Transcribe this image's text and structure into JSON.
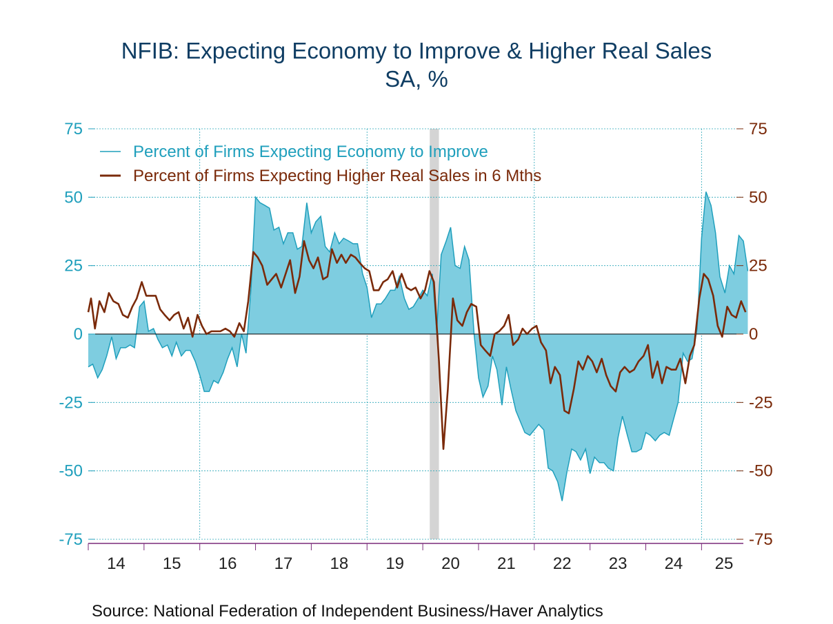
{
  "colors": {
    "econ_line": "#1f9fbc",
    "econ_fill": "#7ecde0",
    "sales_line": "#7a2a0a",
    "left_axis_text": "#1f9fbc",
    "right_axis_text": "#7a2a0a",
    "grid": "#2aa6b8",
    "recession": "#d4d4d4",
    "axis_line": "#7a2a7a",
    "title": "#0f3d63"
  },
  "chart_data": {
    "type": "line",
    "title": "NFIB: Expecting Economy to Improve & Higher Real Sales",
    "subtitle": "SA, %",
    "source": "Source:  National Federation of Independent Business/Haver Analytics",
    "x_labels": [
      "14",
      "15",
      "16",
      "17",
      "18",
      "19",
      "20",
      "21",
      "22",
      "23",
      "24",
      "25"
    ],
    "x_range": [
      2014.0,
      2025.75
    ],
    "y_left": {
      "range": [
        -75,
        75
      ],
      "ticks": [
        "75",
        "50",
        "25",
        "0",
        "-25",
        "-50",
        "-75"
      ]
    },
    "y_right": {
      "range": [
        -75,
        75
      ],
      "ticks": [
        "75",
        "50",
        "25",
        "0",
        "-25",
        "-50",
        "-75"
      ]
    },
    "grid": true,
    "legend_position": "top-left",
    "recession": [
      2020.125,
      2020.29
    ],
    "series": [
      {
        "name": "Percent of Firms Expecting Economy to Improve",
        "axis": "left",
        "style": "area",
        "points": [
          [
            2014.0,
            -12
          ],
          [
            2014.08,
            -11
          ],
          [
            2014.17,
            -16
          ],
          [
            2014.25,
            -13
          ],
          [
            2014.33,
            -8
          ],
          [
            2014.42,
            -1
          ],
          [
            2014.5,
            -9
          ],
          [
            2014.58,
            -5
          ],
          [
            2014.67,
            -5
          ],
          [
            2014.75,
            -4
          ],
          [
            2014.83,
            -5
          ],
          [
            2014.92,
            10
          ],
          [
            2015.0,
            12
          ],
          [
            2015.08,
            1
          ],
          [
            2015.17,
            2
          ],
          [
            2015.25,
            -2
          ],
          [
            2015.33,
            -5
          ],
          [
            2015.42,
            -4
          ],
          [
            2015.5,
            -8
          ],
          [
            2015.58,
            -3
          ],
          [
            2015.67,
            -8
          ],
          [
            2015.75,
            -6
          ],
          [
            2015.83,
            -6
          ],
          [
            2015.92,
            -10
          ],
          [
            2016.0,
            -15
          ],
          [
            2016.08,
            -21
          ],
          [
            2016.17,
            -21
          ],
          [
            2016.25,
            -17
          ],
          [
            2016.33,
            -18
          ],
          [
            2016.42,
            -14
          ],
          [
            2016.5,
            -9
          ],
          [
            2016.58,
            -5
          ],
          [
            2016.67,
            -12
          ],
          [
            2016.75,
            0
          ],
          [
            2016.83,
            -7
          ],
          [
            2016.92,
            17
          ],
          [
            2017.0,
            50
          ],
          [
            2017.08,
            48
          ],
          [
            2017.17,
            47
          ],
          [
            2017.25,
            46
          ],
          [
            2017.33,
            38
          ],
          [
            2017.42,
            39
          ],
          [
            2017.5,
            33
          ],
          [
            2017.58,
            37
          ],
          [
            2017.67,
            37
          ],
          [
            2017.75,
            31
          ],
          [
            2017.83,
            32
          ],
          [
            2017.92,
            48
          ],
          [
            2018.0,
            37
          ],
          [
            2018.08,
            41
          ],
          [
            2018.17,
            43
          ],
          [
            2018.25,
            32
          ],
          [
            2018.33,
            30
          ],
          [
            2018.42,
            37
          ],
          [
            2018.5,
            33
          ],
          [
            2018.58,
            35
          ],
          [
            2018.67,
            34
          ],
          [
            2018.75,
            33
          ],
          [
            2018.83,
            33
          ],
          [
            2018.92,
            22
          ],
          [
            2019.0,
            17
          ],
          [
            2019.08,
            6
          ],
          [
            2019.17,
            11
          ],
          [
            2019.25,
            11
          ],
          [
            2019.33,
            13
          ],
          [
            2019.42,
            16
          ],
          [
            2019.5,
            16
          ],
          [
            2019.58,
            21
          ],
          [
            2019.67,
            13
          ],
          [
            2019.75,
            9
          ],
          [
            2019.83,
            10
          ],
          [
            2019.92,
            13
          ],
          [
            2020.0,
            16
          ],
          [
            2020.08,
            14
          ],
          [
            2020.17,
            22
          ],
          [
            2020.25,
            1
          ],
          [
            2020.33,
            29
          ],
          [
            2020.42,
            34
          ],
          [
            2020.5,
            39
          ],
          [
            2020.58,
            25
          ],
          [
            2020.67,
            24
          ],
          [
            2020.75,
            32
          ],
          [
            2020.83,
            27
          ],
          [
            2020.92,
            0
          ],
          [
            2021.0,
            -16
          ],
          [
            2021.08,
            -23
          ],
          [
            2021.17,
            -19
          ],
          [
            2021.25,
            -8
          ],
          [
            2021.33,
            -13
          ],
          [
            2021.42,
            -26
          ],
          [
            2021.5,
            -12
          ],
          [
            2021.58,
            -20
          ],
          [
            2021.67,
            -28
          ],
          [
            2021.75,
            -32
          ],
          [
            2021.83,
            -36
          ],
          [
            2021.92,
            -37
          ],
          [
            2022.0,
            -35
          ],
          [
            2022.08,
            -33
          ],
          [
            2022.17,
            -35
          ],
          [
            2022.25,
            -49
          ],
          [
            2022.33,
            -50
          ],
          [
            2022.42,
            -54
          ],
          [
            2022.5,
            -61
          ],
          [
            2022.58,
            -51
          ],
          [
            2022.67,
            -42
          ],
          [
            2022.75,
            -43
          ],
          [
            2022.83,
            -46
          ],
          [
            2022.92,
            -42
          ],
          [
            2023.0,
            -51
          ],
          [
            2023.08,
            -45
          ],
          [
            2023.17,
            -47
          ],
          [
            2023.25,
            -47
          ],
          [
            2023.33,
            -49
          ],
          [
            2023.42,
            -50
          ],
          [
            2023.5,
            -38
          ],
          [
            2023.58,
            -30
          ],
          [
            2023.67,
            -37
          ],
          [
            2023.75,
            -43
          ],
          [
            2023.83,
            -43
          ],
          [
            2023.92,
            -42
          ],
          [
            2024.0,
            -36
          ],
          [
            2024.08,
            -37
          ],
          [
            2024.17,
            -39
          ],
          [
            2024.25,
            -37
          ],
          [
            2024.33,
            -36
          ],
          [
            2024.42,
            -37
          ],
          [
            2024.5,
            -31
          ],
          [
            2024.58,
            -25
          ],
          [
            2024.67,
            -7
          ],
          [
            2024.75,
            -10
          ],
          [
            2024.83,
            -9
          ],
          [
            2024.92,
            2
          ],
          [
            2025.0,
            35
          ],
          [
            2025.08,
            52
          ],
          [
            2025.17,
            47
          ],
          [
            2025.25,
            37
          ],
          [
            2025.33,
            21
          ],
          [
            2025.42,
            15
          ],
          [
            2025.5,
            25
          ],
          [
            2025.58,
            22
          ],
          [
            2025.67,
            36
          ],
          [
            2025.75,
            34
          ],
          [
            2025.83,
            23
          ]
        ]
      },
      {
        "name": "Percent of Firms Expecting Higher Real Sales in 6 Mths",
        "axis": "right",
        "style": "line",
        "points": [
          [
            2014.0,
            8
          ],
          [
            2014.05,
            13
          ],
          [
            2014.12,
            2
          ],
          [
            2014.2,
            12
          ],
          [
            2014.29,
            8
          ],
          [
            2014.37,
            15
          ],
          [
            2014.45,
            12
          ],
          [
            2014.54,
            11
          ],
          [
            2014.62,
            7
          ],
          [
            2014.71,
            6
          ],
          [
            2014.79,
            10
          ],
          [
            2014.87,
            13
          ],
          [
            2014.96,
            19
          ],
          [
            2015.04,
            14
          ],
          [
            2015.12,
            14
          ],
          [
            2015.21,
            14
          ],
          [
            2015.29,
            9
          ],
          [
            2015.37,
            7
          ],
          [
            2015.46,
            5
          ],
          [
            2015.54,
            7
          ],
          [
            2015.62,
            8
          ],
          [
            2015.71,
            2
          ],
          [
            2015.79,
            6
          ],
          [
            2015.87,
            -1
          ],
          [
            2015.96,
            7
          ],
          [
            2016.04,
            3
          ],
          [
            2016.12,
            0
          ],
          [
            2016.21,
            1
          ],
          [
            2016.29,
            1
          ],
          [
            2016.37,
            1
          ],
          [
            2016.46,
            2
          ],
          [
            2016.54,
            1
          ],
          [
            2016.62,
            -1
          ],
          [
            2016.71,
            4
          ],
          [
            2016.79,
            1
          ],
          [
            2016.87,
            12
          ],
          [
            2016.96,
            30
          ],
          [
            2017.04,
            28
          ],
          [
            2017.12,
            25
          ],
          [
            2017.21,
            18
          ],
          [
            2017.29,
            20
          ],
          [
            2017.37,
            22
          ],
          [
            2017.46,
            17
          ],
          [
            2017.54,
            22
          ],
          [
            2017.62,
            27
          ],
          [
            2017.71,
            15
          ],
          [
            2017.79,
            21
          ],
          [
            2017.87,
            34
          ],
          [
            2017.96,
            27
          ],
          [
            2018.04,
            24
          ],
          [
            2018.12,
            28
          ],
          [
            2018.21,
            20
          ],
          [
            2018.29,
            21
          ],
          [
            2018.37,
            31
          ],
          [
            2018.46,
            26
          ],
          [
            2018.54,
            29
          ],
          [
            2018.62,
            26
          ],
          [
            2018.71,
            29
          ],
          [
            2018.79,
            28
          ],
          [
            2018.87,
            26
          ],
          [
            2018.96,
            24
          ],
          [
            2019.04,
            23
          ],
          [
            2019.12,
            16
          ],
          [
            2019.21,
            16
          ],
          [
            2019.29,
            19
          ],
          [
            2019.37,
            20
          ],
          [
            2019.46,
            23
          ],
          [
            2019.54,
            17
          ],
          [
            2019.62,
            22
          ],
          [
            2019.71,
            17
          ],
          [
            2019.79,
            16
          ],
          [
            2019.87,
            17
          ],
          [
            2019.96,
            13
          ],
          [
            2020.04,
            16
          ],
          [
            2020.12,
            23
          ],
          [
            2020.2,
            19
          ],
          [
            2020.29,
            -10
          ],
          [
            2020.37,
            -42
          ],
          [
            2020.45,
            -20
          ],
          [
            2020.54,
            13
          ],
          [
            2020.62,
            5
          ],
          [
            2020.71,
            3
          ],
          [
            2020.79,
            8
          ],
          [
            2020.87,
            11
          ],
          [
            2020.96,
            10
          ],
          [
            2021.04,
            -4
          ],
          [
            2021.12,
            -6
          ],
          [
            2021.21,
            -8
          ],
          [
            2021.29,
            0
          ],
          [
            2021.37,
            1
          ],
          [
            2021.46,
            3
          ],
          [
            2021.54,
            7
          ],
          [
            2021.62,
            -4
          ],
          [
            2021.71,
            -2
          ],
          [
            2021.79,
            2
          ],
          [
            2021.87,
            0
          ],
          [
            2021.96,
            2
          ],
          [
            2022.04,
            3
          ],
          [
            2022.12,
            -3
          ],
          [
            2022.21,
            -6
          ],
          [
            2022.29,
            -18
          ],
          [
            2022.37,
            -12
          ],
          [
            2022.46,
            -15
          ],
          [
            2022.54,
            -28
          ],
          [
            2022.62,
            -29
          ],
          [
            2022.71,
            -20
          ],
          [
            2022.79,
            -10
          ],
          [
            2022.87,
            -13
          ],
          [
            2022.96,
            -8
          ],
          [
            2023.04,
            -10
          ],
          [
            2023.12,
            -14
          ],
          [
            2023.21,
            -9
          ],
          [
            2023.29,
            -15
          ],
          [
            2023.37,
            -19
          ],
          [
            2023.46,
            -21
          ],
          [
            2023.54,
            -14
          ],
          [
            2023.62,
            -12
          ],
          [
            2023.71,
            -14
          ],
          [
            2023.79,
            -13
          ],
          [
            2023.87,
            -10
          ],
          [
            2023.96,
            -8
          ],
          [
            2024.04,
            -4
          ],
          [
            2024.12,
            -16
          ],
          [
            2024.21,
            -10
          ],
          [
            2024.29,
            -18
          ],
          [
            2024.37,
            -12
          ],
          [
            2024.46,
            -13
          ],
          [
            2024.54,
            -13
          ],
          [
            2024.62,
            -9
          ],
          [
            2024.71,
            -18
          ],
          [
            2024.79,
            -8
          ],
          [
            2024.87,
            -4
          ],
          [
            2024.96,
            13
          ],
          [
            2025.04,
            22
          ],
          [
            2025.12,
            20
          ],
          [
            2025.21,
            14
          ],
          [
            2025.29,
            3
          ],
          [
            2025.37,
            -1
          ],
          [
            2025.46,
            10
          ],
          [
            2025.54,
            7
          ],
          [
            2025.62,
            6
          ],
          [
            2025.71,
            12
          ],
          [
            2025.79,
            8
          ]
        ]
      }
    ]
  }
}
